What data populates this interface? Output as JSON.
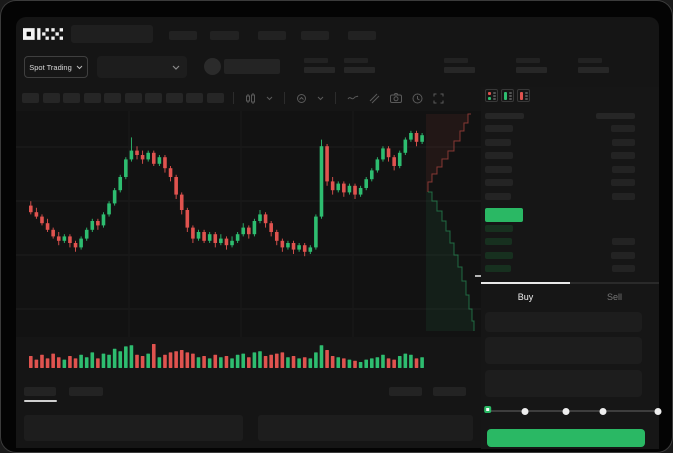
{
  "brand": {
    "logo_text": "OKX"
  },
  "navbar": {
    "item_widths": [
      28,
      29,
      28,
      28,
      28
    ]
  },
  "ticker_bar": {
    "market_selector_label": "Spot Trading",
    "stats_count": 5
  },
  "toolbar": {
    "timeframe_button_count": 10,
    "icons": [
      "candlestick-type-icon",
      "chevron-down-icon",
      "indicators-icon",
      "chevron-down-icon",
      "line-tool-icon",
      "drawing-tools-icon",
      "camera-icon",
      "history-icon",
      "fullscreen-icon"
    ]
  },
  "order_book": {
    "view_icons": [
      "orderbook-view-combined-icon",
      "orderbook-view-bids-icon",
      "orderbook-view-asks-icon"
    ],
    "ask_rows": [
      {
        "pw": 28,
        "aw": 24
      },
      {
        "pw": 26,
        "aw": 23
      },
      {
        "pw": 28,
        "aw": 24
      },
      {
        "pw": 27,
        "aw": 23
      },
      {
        "pw": 28,
        "aw": 24
      },
      {
        "pw": 26,
        "aw": 23
      }
    ],
    "bid_rows": [
      {
        "pw": 28,
        "aw": 0
      },
      {
        "pw": 27,
        "aw": 23
      },
      {
        "pw": 28,
        "aw": 24
      },
      {
        "pw": 26,
        "aw": 23
      }
    ]
  },
  "order_panel": {
    "tabs": [
      {
        "label": "Buy",
        "active": true
      },
      {
        "label": "Sell",
        "active": false
      }
    ],
    "input_row_heights": [
      20,
      27,
      27
    ],
    "slider_stops_pct": [
      0,
      22,
      46,
      68,
      100
    ],
    "slider_value_pct": 0
  },
  "colors": {
    "up_green": "#2ebd70",
    "down_red": "#e0534f",
    "accent_green": "#2ab864",
    "tab_indicator": "#e8e8e8",
    "grid": "#1d1d1d"
  },
  "chart_data": {
    "type": "candlestick",
    "price_axis_visible": false,
    "price_scale": [
      0,
      100
    ],
    "legend": "none",
    "candles": [
      [
        57,
        59,
        53,
        54
      ],
      [
        54,
        56,
        51,
        52
      ],
      [
        52,
        53,
        48,
        49
      ],
      [
        49,
        51,
        45,
        46
      ],
      [
        46,
        47,
        42,
        43
      ],
      [
        43,
        45,
        39,
        41
      ],
      [
        41,
        44,
        40,
        43
      ],
      [
        43,
        44,
        38,
        40
      ],
      [
        40,
        41,
        36,
        38
      ],
      [
        38,
        43,
        37,
        42
      ],
      [
        42,
        47,
        41,
        46
      ],
      [
        46,
        51,
        45,
        50
      ],
      [
        50,
        51,
        46,
        48
      ],
      [
        48,
        54,
        47,
        53
      ],
      [
        53,
        59,
        52,
        58
      ],
      [
        58,
        65,
        57,
        64
      ],
      [
        64,
        71,
        63,
        70
      ],
      [
        70,
        79,
        69,
        78
      ],
      [
        78,
        88,
        77,
        82
      ],
      [
        82,
        84,
        78,
        80
      ],
      [
        80,
        82,
        76,
        78
      ],
      [
        78,
        82,
        77,
        81
      ],
      [
        81,
        82,
        75,
        76
      ],
      [
        76,
        80,
        75,
        79
      ],
      [
        79,
        80,
        72,
        74
      ],
      [
        74,
        75,
        68,
        70
      ],
      [
        70,
        71,
        60,
        62
      ],
      [
        62,
        63,
        53,
        55
      ],
      [
        55,
        56,
        45,
        47
      ],
      [
        47,
        48,
        40,
        42
      ],
      [
        42,
        46,
        41,
        45
      ],
      [
        45,
        46,
        40,
        41
      ],
      [
        41,
        45,
        40,
        44
      ],
      [
        44,
        45,
        38,
        40
      ],
      [
        40,
        44,
        39,
        42
      ],
      [
        42,
        43,
        37,
        39
      ],
      [
        39,
        43,
        38,
        41
      ],
      [
        41,
        45,
        40,
        44
      ],
      [
        44,
        49,
        43,
        47
      ],
      [
        47,
        48,
        42,
        44
      ],
      [
        44,
        51,
        43,
        50
      ],
      [
        50,
        55,
        49,
        53
      ],
      [
        53,
        54,
        47,
        49
      ],
      [
        49,
        50,
        43,
        45
      ],
      [
        45,
        46,
        39,
        41
      ],
      [
        41,
        42,
        36,
        38
      ],
      [
        38,
        41,
        37,
        40
      ],
      [
        40,
        41,
        35,
        37
      ],
      [
        37,
        40,
        36,
        39
      ],
      [
        39,
        40,
        34,
        36
      ],
      [
        36,
        39,
        35,
        38
      ],
      [
        38,
        53,
        37,
        52
      ],
      [
        52,
        87,
        51,
        84
      ],
      [
        84,
        85,
        66,
        68
      ],
      [
        68,
        70,
        62,
        64
      ],
      [
        64,
        68,
        63,
        67
      ],
      [
        67,
        68,
        61,
        63
      ],
      [
        63,
        67,
        62,
        66
      ],
      [
        66,
        67,
        60,
        62
      ],
      [
        62,
        66,
        61,
        65
      ],
      [
        65,
        70,
        64,
        69
      ],
      [
        69,
        74,
        68,
        73
      ],
      [
        73,
        79,
        72,
        78
      ],
      [
        78,
        84,
        77,
        83
      ],
      [
        83,
        84,
        77,
        79
      ],
      [
        79,
        80,
        73,
        75
      ],
      [
        75,
        82,
        74,
        81
      ],
      [
        81,
        88,
        80,
        87
      ],
      [
        87,
        91,
        86,
        90
      ],
      [
        90,
        91,
        84,
        86
      ],
      [
        86,
        90,
        85,
        89
      ]
    ],
    "volume": [
      0.5,
      0.35,
      0.55,
      0.4,
      0.6,
      0.45,
      0.35,
      0.5,
      0.4,
      0.55,
      0.45,
      0.65,
      0.4,
      0.6,
      0.55,
      0.8,
      0.7,
      0.9,
      0.95,
      0.55,
      0.5,
      0.6,
      1.0,
      0.45,
      0.55,
      0.65,
      0.7,
      0.75,
      0.65,
      0.6,
      0.45,
      0.5,
      0.4,
      0.55,
      0.45,
      0.5,
      0.4,
      0.55,
      0.6,
      0.45,
      0.65,
      0.7,
      0.5,
      0.55,
      0.6,
      0.65,
      0.45,
      0.5,
      0.4,
      0.45,
      0.4,
      0.65,
      0.95,
      0.75,
      0.5,
      0.45,
      0.4,
      0.35,
      0.3,
      0.25,
      0.35,
      0.4,
      0.45,
      0.55,
      0.4,
      0.35,
      0.5,
      0.6,
      0.55,
      0.4,
      0.45
    ],
    "depth_overlay": {
      "asks": [
        [
          455,
          3
        ],
        [
          452,
          12
        ],
        [
          448,
          20
        ],
        [
          444,
          30
        ],
        [
          438,
          40
        ],
        [
          432,
          48
        ],
        [
          426,
          56
        ],
        [
          421,
          63
        ],
        [
          416,
          71
        ],
        [
          412,
          81
        ]
      ],
      "bids": [
        [
          412,
          81
        ],
        [
          416,
          90
        ],
        [
          421,
          100
        ],
        [
          426,
          110
        ],
        [
          430,
          120
        ],
        [
          434,
          132
        ],
        [
          438,
          144
        ],
        [
          442,
          156
        ],
        [
          446,
          170
        ],
        [
          450,
          184
        ],
        [
          453,
          198
        ],
        [
          456,
          210
        ],
        [
          458,
          220
        ]
      ]
    }
  }
}
